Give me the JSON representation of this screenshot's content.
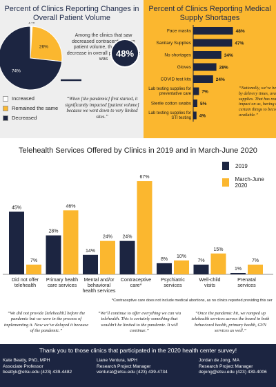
{
  "top_left": {
    "title": "Percent of Clinics Reporting Changes in Overall Patient Volume",
    "note": "Among the clinics that saw decreased contraceptive care patient volume, the average decrease in overall patient volume was",
    "bubble_value": "48%",
    "quote": "“When [the pandemic] first started, it significantly impacted [patient volume] because we went down to very limited sites.”"
  },
  "top_right": {
    "title": "Percent of Clinics Reporting Medical Supply Shortages",
    "quote": "“Nationally, we’ve been impacted by delivery times, availability, no supplies. That has really had a huge impact on us, having to wait for certain things to become available.”"
  },
  "middle": {
    "title": "Telehealth Services Offered by Clinics in 2019 and in March-June 2020",
    "footnote": "*Contraceptive care does not include medical abortions, as no clinics reported providing this ser"
  },
  "quotes": [
    "“We did not provide [telehealth] before the pandemic but we were in the process of implementing it. Now we’ve delayed it because of the pandemic.”",
    "“We’ll continue to offer everything we can via telehealth. This is certainly something that wouldn’t be limited to the pandemic. It will continue.”",
    "“Once the pandemic hit, we ramped up telehealth services across the board in both behavioral health, primary health, GYN services as well.”"
  ],
  "footer": {
    "thanks": "Thank you to those clinics that participated in the 2020 health center survey!",
    "people": [
      {
        "name": "Kate Beatty, PhD, MPH",
        "role": "Associate Professor",
        "contact": "beattyk@etsu.edu (423) 439-4482"
      },
      {
        "name": "Liane Ventura, MPH",
        "role": "Research Project Manager",
        "contact": "venturat@etsu.edu (423) 439-4734"
      },
      {
        "name": "Jordan de Jong, MA",
        "role": "Research Project Manager",
        "contact": "dejong@etsu.edu (423) 439-4006"
      }
    ]
  },
  "colors": {
    "navy": "#1c2541",
    "yellow": "#fbb72f",
    "light_grey": "#eeeeee",
    "white": "#ffffff"
  },
  "chart_data": [
    {
      "type": "pie",
      "title": "Percent of Clinics Reporting Changes in Overall Patient Volume",
      "slices": [
        {
          "label": "Increased",
          "value": 1,
          "display": "1%",
          "color": "#ffffff"
        },
        {
          "label": "Remained the same",
          "value": 26,
          "display": "26%",
          "color": "#fbb72f"
        },
        {
          "label": "Decreased",
          "value": 74,
          "display": "74%",
          "color": "#1c2541"
        }
      ],
      "legend_position": "bottom-left"
    },
    {
      "type": "bar",
      "orientation": "horizontal",
      "title": "Percent of Clinics Reporting Medical Supply Shortages",
      "categories": [
        "Face masks",
        "Sanitary Supplies",
        "No shortages",
        "Gloves",
        "COVID test kits",
        "Lab testing supplies for preventative care",
        "Sterile cotton swabs",
        "Lab testing supplies for STI testing"
      ],
      "values": [
        48,
        47,
        34,
        28,
        24,
        7,
        5,
        4
      ],
      "labels": [
        "48%",
        "47%",
        "34%",
        "28%",
        "24%",
        "7%",
        "5%",
        "4%"
      ],
      "xlim": [
        0,
        50
      ],
      "color": "#1c2541"
    },
    {
      "type": "bar",
      "title": "Telehealth Services Offered by Clinics in 2019 and in March-June 2020",
      "categories": [
        "Did not offer telehealth",
        "Primary health care services",
        "Mental and/or behavioral health services",
        "Contraceptive care*",
        "Psychiatric services",
        "Well-child visits",
        "Prenatal services"
      ],
      "series": [
        {
          "name": "2019",
          "color": "#1c2541",
          "values": [
            45,
            28,
            14,
            24,
            8,
            7,
            1
          ],
          "labels": [
            "45%",
            "28%",
            "14%",
            "24%",
            "8%",
            "7%",
            "1%"
          ]
        },
        {
          "name": "March-June 2020",
          "color": "#fbb72f",
          "values": [
            7,
            46,
            24,
            67,
            10,
            15,
            7
          ],
          "labels": [
            "7%",
            "46%",
            "24%",
            "67%",
            "10%",
            "15%",
            "7%"
          ]
        }
      ],
      "ylim": [
        0,
        70
      ],
      "grid": false,
      "legend_position": "top-right"
    }
  ]
}
